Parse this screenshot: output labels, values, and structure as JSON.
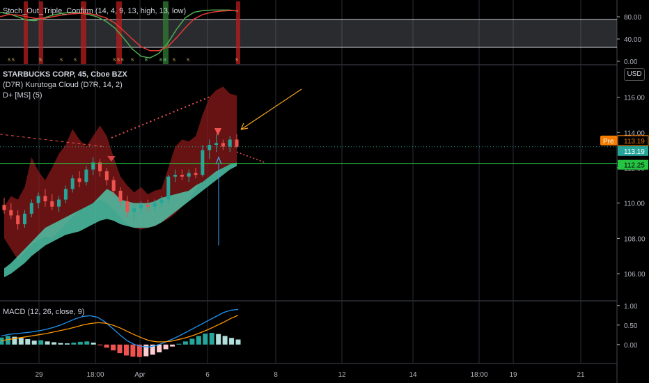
{
  "chart_data": [
    {
      "type": "line",
      "title": "Stoch_Out_Triple_Confirm (14, 4, 9, 13, high, 13, low)",
      "yticks": [
        "80.00",
        "40.00",
        "0.00"
      ],
      "ylim": [
        0,
        100
      ],
      "band": [
        25,
        75
      ],
      "series": [
        {
          "color": "#4caf50",
          "values": [
            88,
            85,
            80,
            74,
            73,
            78,
            83,
            86,
            88,
            87,
            84,
            80,
            72,
            60,
            42,
            22,
            9,
            6,
            14,
            32,
            57,
            78,
            88,
            91,
            92,
            92,
            92,
            90
          ]
        },
        {
          "color": "#e53935",
          "values": [
            80,
            84,
            83,
            80,
            77,
            77,
            80,
            83,
            85,
            86,
            86,
            83,
            78,
            69,
            55,
            40,
            26,
            19,
            19,
            26,
            42,
            60,
            76,
            84,
            88,
            90,
            91,
            91
          ]
        }
      ],
      "signal_labels": [
        "S S",
        "S",
        "S",
        "S",
        "S S S",
        "S",
        "B",
        "B B",
        "S",
        "S",
        "S"
      ]
    },
    {
      "type": "candlestick",
      "title": "STARBUCKS CORP, 45, Cboe BZX",
      "legend": [
        "(D7R) Kurutoga Cloud (D7R, 14, 2)",
        "D+ [MS] (5)"
      ],
      "currency": "USD",
      "yticks": [
        "116.00",
        "114.00",
        "112.00",
        "110.00",
        "108.00",
        "106.00"
      ],
      "ylim": [
        104.5,
        117.8
      ],
      "candles": [
        [
          109.9,
          110.3,
          109.4,
          109.6
        ],
        [
          109.6,
          110.0,
          109.1,
          109.3
        ],
        [
          109.3,
          109.6,
          108.5,
          108.8
        ],
        [
          108.8,
          109.6,
          108.6,
          109.4
        ],
        [
          109.4,
          110.2,
          109.2,
          110.0
        ],
        [
          110.0,
          110.6,
          109.7,
          110.4
        ],
        [
          110.4,
          110.8,
          109.8,
          110.1
        ],
        [
          110.1,
          110.5,
          109.6,
          109.8
        ],
        [
          109.8,
          110.4,
          109.5,
          110.2
        ],
        [
          110.2,
          111.0,
          110.0,
          110.8
        ],
        [
          110.8,
          111.6,
          110.6,
          111.4
        ],
        [
          111.4,
          111.8,
          110.9,
          111.2
        ],
        [
          111.2,
          112.1,
          111.0,
          111.9
        ],
        [
          111.9,
          112.6,
          111.6,
          112.3
        ],
        [
          112.3,
          112.5,
          111.5,
          111.8
        ],
        [
          111.8,
          112.0,
          111.0,
          111.3
        ],
        [
          111.3,
          111.5,
          110.4,
          110.7
        ],
        [
          110.7,
          110.9,
          109.8,
          110.1
        ],
        [
          110.1,
          110.4,
          109.2,
          109.5
        ],
        [
          109.5,
          109.9,
          109.0,
          109.7
        ],
        [
          109.7,
          110.1,
          109.4,
          109.9
        ],
        [
          109.9,
          110.2,
          109.5,
          109.8
        ],
        [
          109.8,
          110.2,
          109.6,
          110.0
        ],
        [
          110.0,
          110.4,
          109.8,
          110.2
        ],
        [
          110.2,
          111.6,
          110.0,
          111.5
        ],
        [
          111.5,
          111.9,
          111.2,
          111.6
        ],
        [
          111.6,
          111.9,
          111.3,
          111.5
        ],
        [
          111.5,
          111.9,
          111.2,
          111.7
        ],
        [
          111.7,
          112.0,
          111.4,
          111.6
        ],
        [
          111.6,
          113.3,
          111.5,
          113.0
        ],
        [
          113.0,
          113.6,
          112.5,
          113.3
        ],
        [
          113.3,
          113.9,
          112.9,
          113.4
        ],
        [
          113.4,
          113.6,
          113.0,
          113.2
        ],
        [
          113.2,
          113.8,
          112.9,
          113.6
        ],
        [
          113.6,
          113.9,
          113.1,
          113.19
        ]
      ],
      "hlines": [
        {
          "value": 112.25,
          "label": "112.25",
          "color": "#26c443"
        },
        {
          "value": 113.19,
          "label": "113.19",
          "color": "#26a69a",
          "tag": "Pre"
        }
      ],
      "pre_label": "Pre",
      "pre_value": "113.19"
    },
    {
      "type": "bar",
      "title": "MACD (12, 26, close, 9)",
      "yticks": [
        "1.00",
        "0.50",
        "0.00"
      ],
      "ylim": [
        -0.45,
        1.05
      ],
      "histogram": [
        0.18,
        0.22,
        0.2,
        0.17,
        0.14,
        0.1,
        0.11,
        0.08,
        0.06,
        0.04,
        0.03,
        0.05,
        0.07,
        0.08,
        0.05,
        -0.02,
        -0.08,
        -0.15,
        -0.22,
        -0.28,
        -0.31,
        -0.32,
        -0.3,
        -0.26,
        -0.2,
        -0.12,
        -0.05,
        0.02,
        0.08,
        0.15,
        0.22,
        0.28,
        0.3,
        0.27,
        0.22,
        0.17,
        0.13
      ],
      "macd": [
        0.22,
        0.26,
        0.28,
        0.3,
        0.32,
        0.35,
        0.39,
        0.44,
        0.5,
        0.58,
        0.66,
        0.72,
        0.74,
        0.7,
        0.58,
        0.42,
        0.25,
        0.1,
        0.0,
        -0.05,
        -0.06,
        -0.02,
        0.05,
        0.13,
        0.22,
        0.32,
        0.42,
        0.52,
        0.62,
        0.72,
        0.82,
        0.88,
        0.9
      ],
      "signal": [
        0.1,
        0.13,
        0.16,
        0.19,
        0.22,
        0.25,
        0.28,
        0.32,
        0.36,
        0.4,
        0.45,
        0.5,
        0.54,
        0.56,
        0.55,
        0.5,
        0.43,
        0.34,
        0.25,
        0.17,
        0.1,
        0.07,
        0.07,
        0.09,
        0.13,
        0.18,
        0.24,
        0.31,
        0.39,
        0.48,
        0.57,
        0.67,
        0.75
      ]
    }
  ],
  "x_axis": {
    "labels": [
      "29",
      "18:00",
      "Apr",
      "6",
      "8",
      "12",
      "14",
      "18:00",
      "19",
      "21"
    ]
  },
  "colors": {
    "background": "#000000",
    "up": "#26a69a",
    "down": "#ef5350",
    "grid": "#2a2e39",
    "cloud_green": "#4fc3a7",
    "cloud_red": "#8b1a1a",
    "annotation_arrow": "#f5a623",
    "pre_tag": "#f57c00"
  }
}
